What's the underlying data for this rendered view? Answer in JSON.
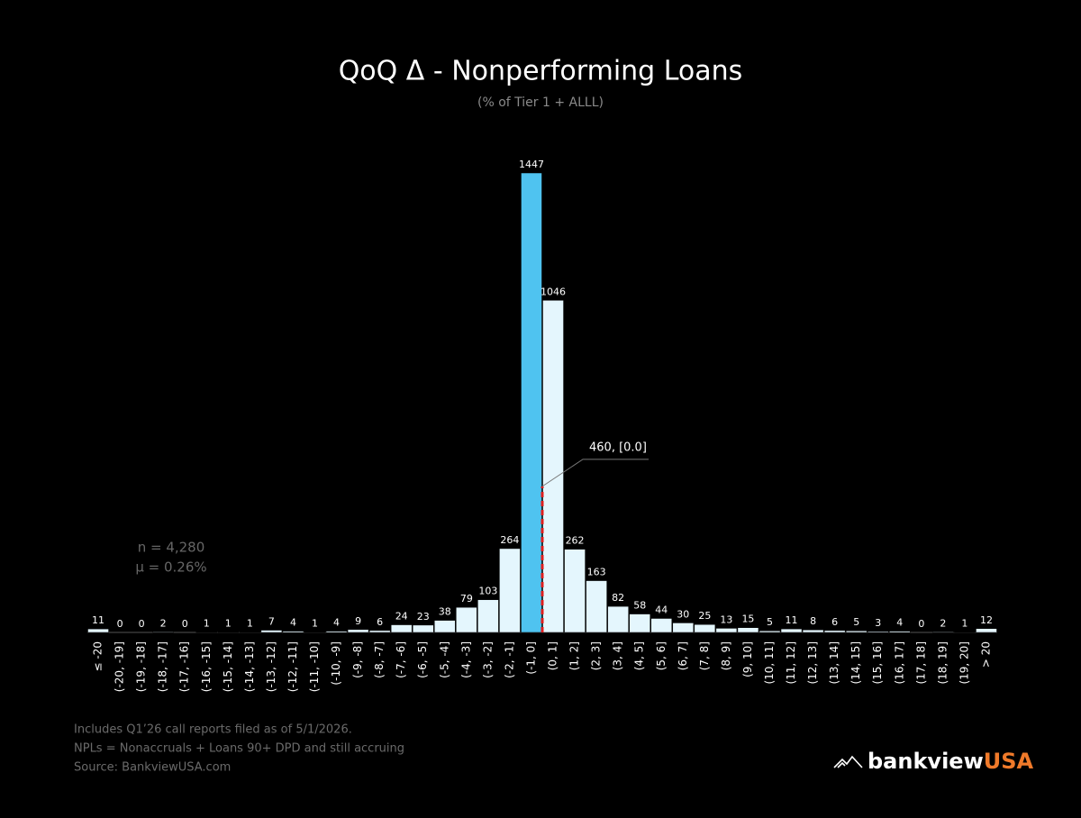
{
  "chart_data": {
    "type": "histogram",
    "title": "QoQ Δ - Nonperforming Loans",
    "subtitle": "(% of Tier 1 + ALLL)",
    "categories": [
      "≤ -20",
      "(-20, -19]",
      "(-19, -18]",
      "(-18, -17]",
      "(-17, -16]",
      "(-16, -15]",
      "(-15, -14]",
      "(-14, -13]",
      "(-13, -12]",
      "(-12, -11]",
      "(-11, -10]",
      "(-10, -9]",
      "(-9, -8]",
      "(-8, -7]",
      "(-7, -6]",
      "(-6, -5]",
      "(-5, -4]",
      "(-4, -3]",
      "(-3, -2]",
      "(-2, -1]",
      "(-1, 0]",
      "(0, 1]",
      "(1, 2]",
      "(2, 3]",
      "(3, 4]",
      "(4, 5]",
      "(5, 6]",
      "(6, 7]",
      "(7, 8]",
      "(8, 9]",
      "(9, 10]",
      "(10, 11]",
      "(11, 12]",
      "(12, 13]",
      "(13, 14]",
      "(14, 15]",
      "(15, 16]",
      "(16, 17]",
      "(17, 18]",
      "(18, 19]",
      "(19, 20]",
      "> 20"
    ],
    "values": [
      11,
      0,
      0,
      2,
      0,
      1,
      1,
      1,
      7,
      4,
      1,
      4,
      9,
      6,
      24,
      23,
      38,
      79,
      103,
      264,
      1447,
      1046,
      262,
      163,
      82,
      58,
      44,
      30,
      25,
      13,
      15,
      5,
      11,
      8,
      6,
      5,
      3,
      4,
      0,
      2,
      1,
      12
    ],
    "color": "#e4f6fd",
    "highlight_index": 20,
    "highlight_color": "#4fc3f0",
    "annotation": {
      "text": "460, [0.0]",
      "value": 460,
      "color": "#e01e1e"
    },
    "stats": [
      "n = 4,280",
      "μ = 0.26%"
    ]
  },
  "notes": [
    "Includes Q1’26 call reports filed as of 5/1/2026.",
    "NPLs = Nonaccruals + Loans 90+ DPD and still accruing",
    "Source: BankviewUSA.com"
  ],
  "brand": {
    "name": "bankview",
    "suffix": "USA"
  }
}
